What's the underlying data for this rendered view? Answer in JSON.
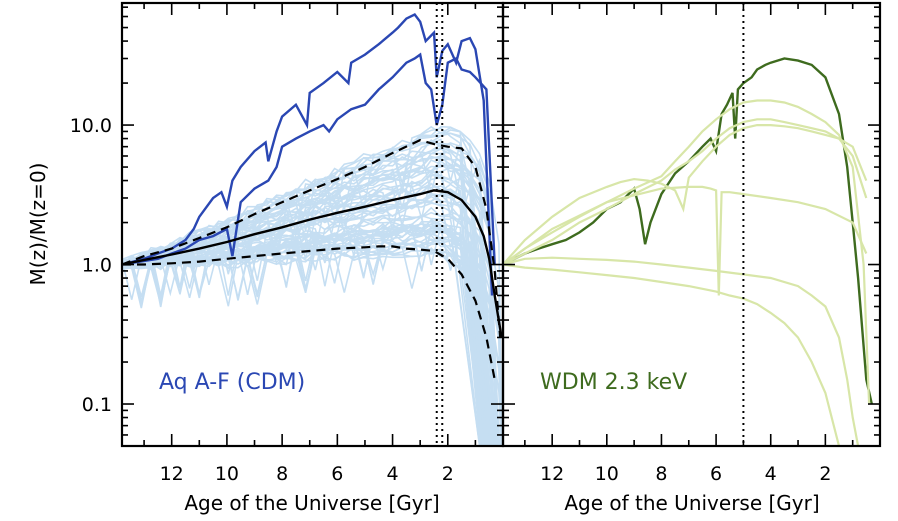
{
  "chart_data": [
    {
      "type": "line",
      "title": "",
      "xlabel": "Age of the Universe [Gyr]",
      "ylabel": "M(z)/M(z=0)",
      "xlim": [
        13.8,
        0.0
      ],
      "ylim": [
        0.05,
        75
      ],
      "yscale": "log",
      "xticks": [
        12,
        10,
        8,
        6,
        4,
        2
      ],
      "xtick_labels": [
        "12",
        "10",
        "8",
        "6",
        "4",
        "2"
      ],
      "yticks": [
        0.1,
        1.0,
        10.0
      ],
      "ytick_labels": [
        "0.1",
        "1.0",
        "10.0"
      ],
      "annotation": "Aq A-F (CDM)",
      "vlines": [
        2.4,
        2.2
      ],
      "colors": {
        "light": "#c5def2",
        "highlight": "#2a47b3",
        "median": "#000000",
        "label": "#2a47b3"
      },
      "series": [
        {
          "name": "highlight-upper",
          "style": "highlight",
          "x": [
            13.8,
            13.0,
            12.5,
            12.0,
            11.5,
            11.2,
            11.0,
            10.5,
            10.2,
            10.0,
            9.8,
            9.5,
            9.0,
            8.6,
            8.5,
            8.2,
            8.0,
            7.5,
            7.1,
            7.0,
            6.5,
            6.0,
            5.6,
            5.5,
            5.0,
            4.5,
            4.0,
            3.8,
            3.5,
            3.2,
            3.0,
            2.8,
            2.5,
            2.4,
            2.2,
            2.0,
            1.7,
            1.5,
            1.2,
            1.0,
            0.7,
            0.4
          ],
          "y": [
            1.0,
            1.1,
            1.2,
            1.3,
            1.5,
            1.8,
            2.2,
            3.0,
            3.3,
            2.6,
            4.0,
            5.0,
            6.5,
            7.5,
            5.5,
            9.0,
            11.5,
            14.0,
            10.0,
            17.0,
            20.0,
            24.0,
            20.0,
            28.0,
            32.0,
            38.0,
            46.0,
            50.0,
            58.0,
            62.0,
            55.0,
            40.0,
            46.0,
            22.0,
            34.0,
            38.0,
            28.0,
            40.0,
            42.0,
            35.0,
            15.0,
            0.6
          ]
        },
        {
          "name": "highlight-lower",
          "style": "highlight",
          "x": [
            13.8,
            12.5,
            12.0,
            11.5,
            11.0,
            10.5,
            10.0,
            9.8,
            9.5,
            9.0,
            8.5,
            8.2,
            8.0,
            7.5,
            7.0,
            6.5,
            6.3,
            6.0,
            5.5,
            5.0,
            4.5,
            4.0,
            3.5,
            3.2,
            3.0,
            2.8,
            2.6,
            2.4,
            2.2,
            2.0,
            1.7,
            1.5,
            1.2,
            1.0,
            0.6,
            0.3
          ],
          "y": [
            1.0,
            1.1,
            1.2,
            1.3,
            1.5,
            1.6,
            1.8,
            1.15,
            2.8,
            3.5,
            4.0,
            5.0,
            7.0,
            8.0,
            9.0,
            10.0,
            9.0,
            11.0,
            13.0,
            14.0,
            18.0,
            22.0,
            28.0,
            30.0,
            32.0,
            20.0,
            18.0,
            10.0,
            14.0,
            28.0,
            30.0,
            25.0,
            24.0,
            22.0,
            18.0,
            1.0
          ]
        },
        {
          "name": "median",
          "style": "median",
          "x": [
            13.8,
            13.0,
            12.0,
            11.0,
            10.0,
            9.0,
            8.0,
            7.0,
            6.0,
            5.0,
            4.0,
            3.0,
            2.5,
            2.0,
            1.5,
            1.0,
            0.7,
            0.5,
            0.3,
            0.05
          ],
          "y": [
            1.0,
            1.08,
            1.18,
            1.3,
            1.45,
            1.65,
            1.85,
            2.1,
            2.35,
            2.6,
            2.9,
            3.2,
            3.4,
            3.3,
            2.9,
            2.2,
            1.6,
            1.1,
            0.6,
            0.3
          ]
        },
        {
          "name": "percentile-upper",
          "style": "dashed",
          "x": [
            13.8,
            13.0,
            12.0,
            11.0,
            10.0,
            9.0,
            8.0,
            7.0,
            6.0,
            5.0,
            4.0,
            3.0,
            2.5,
            2.0,
            1.5,
            1.0,
            0.6,
            0.3,
            0.1
          ],
          "y": [
            1.0,
            1.15,
            1.3,
            1.55,
            1.85,
            2.3,
            2.8,
            3.4,
            4.1,
            5.0,
            6.3,
            7.8,
            7.3,
            7.0,
            6.8,
            5.0,
            2.5,
            0.9,
            0.3
          ]
        },
        {
          "name": "percentile-lower",
          "style": "dashed",
          "x": [
            13.8,
            13.0,
            12.0,
            11.0,
            10.0,
            9.0,
            8.0,
            7.0,
            6.0,
            5.0,
            4.5,
            4.0,
            3.5,
            3.0,
            2.5,
            2.0,
            1.5,
            1.0,
            0.6,
            0.3
          ],
          "y": [
            1.0,
            1.0,
            1.02,
            1.05,
            1.1,
            1.15,
            1.2,
            1.25,
            1.3,
            1.33,
            1.35,
            1.35,
            1.3,
            1.28,
            1.25,
            1.1,
            0.85,
            0.55,
            0.3,
            0.15
          ]
        }
      ]
    },
    {
      "type": "line",
      "title": "",
      "xlabel": "Age of the Universe [Gyr]",
      "ylabel": "",
      "xlim": [
        13.8,
        0.0
      ],
      "ylim": [
        0.05,
        75
      ],
      "yscale": "log",
      "xticks": [
        12,
        10,
        8,
        6,
        4,
        2
      ],
      "xtick_labels": [
        "12",
        "10",
        "8",
        "6",
        "4",
        "2"
      ],
      "annotation": "WDM 2.3 keV",
      "vlines": [
        5.0
      ],
      "colors": {
        "light": "#d8e6a8",
        "highlight": "#3e6b1e",
        "label": "#3e6b1e"
      },
      "series": [
        {
          "name": "wdm-highlight",
          "style": "highlight",
          "x": [
            13.8,
            13.0,
            12.5,
            12.0,
            11.5,
            11.0,
            10.5,
            10.0,
            9.5,
            9.0,
            8.8,
            8.6,
            8.4,
            8.0,
            7.5,
            7.0,
            6.5,
            6.2,
            6.0,
            5.8,
            5.6,
            5.4,
            5.3,
            5.2,
            5.0,
            4.7,
            4.5,
            4.2,
            4.0,
            3.5,
            3.0,
            2.5,
            2.0,
            1.5,
            1.2,
            1.0,
            0.8,
            0.5,
            0.3
          ],
          "y": [
            1.0,
            1.2,
            1.3,
            1.4,
            1.5,
            1.7,
            2.0,
            2.5,
            2.8,
            3.5,
            2.5,
            1.4,
            2.0,
            3.2,
            4.5,
            5.5,
            7.0,
            8.0,
            6.5,
            12.0,
            14.0,
            17.0,
            8.0,
            18.0,
            20.0,
            22.0,
            25.0,
            27.0,
            28.0,
            30.0,
            29.0,
            27.0,
            22.0,
            12.0,
            5.0,
            2.0,
            0.8,
            0.15,
            0.1
          ]
        },
        {
          "name": "wdm-light-1",
          "style": "light",
          "x": [
            13.8,
            13.0,
            12.0,
            11.0,
            10.0,
            9.0,
            8.0,
            7.5,
            7.0,
            6.5,
            6.0,
            5.5,
            5.0,
            4.5,
            4.0,
            3.5,
            3.0,
            2.5,
            2.0,
            1.5,
            1.0,
            0.6,
            0.4
          ],
          "y": [
            1.0,
            1.3,
            1.7,
            2.2,
            2.8,
            3.5,
            4.3,
            5.5,
            7.0,
            9.0,
            11.0,
            13.0,
            14.5,
            15.0,
            15.0,
            14.5,
            13.5,
            12.0,
            10.5,
            8.5,
            5.0,
            1.0,
            0.1
          ]
        },
        {
          "name": "wdm-light-2",
          "style": "light",
          "x": [
            13.8,
            13.0,
            12.0,
            11.0,
            10.0,
            9.0,
            8.0,
            7.5,
            7.0,
            6.5,
            6.0,
            5.5,
            5.0,
            4.5,
            4.0,
            3.5,
            3.0,
            2.5,
            2.0,
            1.5,
            1.0,
            0.5
          ],
          "y": [
            1.0,
            1.2,
            1.5,
            2.0,
            2.5,
            3.2,
            4.0,
            4.8,
            5.5,
            6.5,
            8.0,
            9.5,
            10.5,
            11.0,
            11.0,
            10.5,
            10.0,
            9.5,
            9.0,
            8.0,
            6.0,
            3.0
          ]
        },
        {
          "name": "wdm-light-3",
          "style": "light",
          "x": [
            13.8,
            13.0,
            12.0,
            11.0,
            10.0,
            9.5,
            9.0,
            8.5,
            8.0,
            7.5,
            7.2,
            7.0,
            6.5,
            6.0,
            5.5,
            5.0,
            4.5,
            4.0,
            3.5,
            3.0,
            2.5,
            2.0,
            1.5,
            1.0,
            0.5
          ],
          "y": [
            1.0,
            1.5,
            2.2,
            3.0,
            3.6,
            3.9,
            4.1,
            4.0,
            3.8,
            3.4,
            2.5,
            4.2,
            5.5,
            7.0,
            8.5,
            9.5,
            10.0,
            10.0,
            9.8,
            9.5,
            9.0,
            8.5,
            8.0,
            7.0,
            4.0
          ]
        },
        {
          "name": "wdm-light-4",
          "style": "light",
          "x": [
            13.8,
            12.0,
            10.0,
            8.0,
            7.0,
            6.5,
            6.2,
            6.0,
            5.9,
            5.8,
            5.5,
            5.0,
            4.0,
            3.0,
            2.0,
            1.0,
            0.5
          ],
          "y": [
            1.0,
            1.8,
            2.8,
            3.5,
            3.6,
            3.6,
            3.5,
            3.4,
            0.6,
            3.3,
            3.3,
            3.2,
            3.0,
            2.8,
            2.5,
            2.0,
            1.2
          ]
        },
        {
          "name": "wdm-light-5",
          "style": "light",
          "x": [
            13.8,
            13.0,
            12.0,
            11.0,
            10.0,
            9.0,
            8.0,
            7.0,
            6.0,
            5.0,
            4.0,
            3.0,
            2.5,
            2.0,
            1.5,
            1.2,
            1.0,
            0.8
          ],
          "y": [
            1.0,
            1.1,
            1.12,
            1.1,
            1.08,
            1.05,
            1.0,
            0.95,
            0.9,
            0.85,
            0.8,
            0.7,
            0.6,
            0.5,
            0.3,
            0.15,
            0.08,
            0.05
          ]
        },
        {
          "name": "wdm-light-6",
          "style": "light",
          "x": [
            13.8,
            13.0,
            12.0,
            11.0,
            10.0,
            9.0,
            8.0,
            7.0,
            6.0,
            5.5,
            5.0,
            4.5,
            4.0,
            3.5,
            3.0,
            2.5,
            2.0,
            1.5
          ],
          "y": [
            1.0,
            0.95,
            0.92,
            0.88,
            0.84,
            0.8,
            0.75,
            0.7,
            0.64,
            0.6,
            0.57,
            0.52,
            0.45,
            0.38,
            0.3,
            0.2,
            0.12,
            0.05
          ]
        }
      ]
    }
  ]
}
